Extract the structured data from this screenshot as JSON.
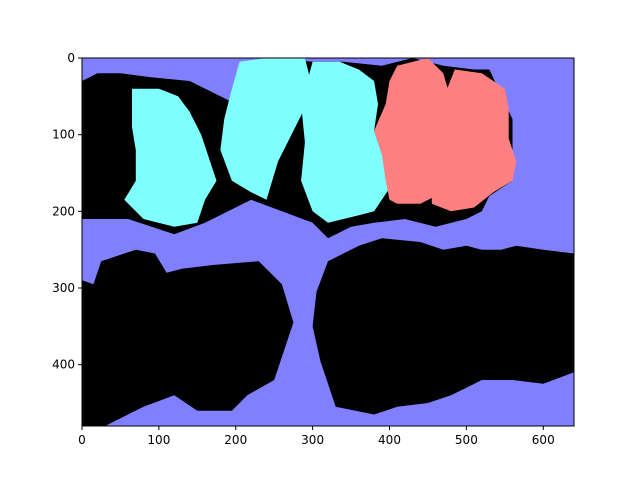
{
  "chart_data": {
    "type": "heatmap",
    "subtype": "segmentation-mask-image",
    "title": "",
    "xlabel": "",
    "ylabel": "",
    "xlim": [
      0,
      640
    ],
    "ylim": [
      480,
      0
    ],
    "y_inverted": true,
    "xticks": [
      0,
      100,
      200,
      300,
      400,
      500,
      600
    ],
    "yticks": [
      0,
      100,
      200,
      300,
      400
    ],
    "grid": false,
    "legend": "none",
    "classes": [
      {
        "id": "background",
        "color": "#8080ff"
      },
      {
        "id": "shadow",
        "color": "#000000"
      },
      {
        "id": "cyan-region",
        "color": "#80ffff"
      },
      {
        "id": "red-region",
        "color": "#ff8080"
      }
    ],
    "regions": [
      {
        "class": "shadow",
        "points": [
          [
            0,
            30
          ],
          [
            20,
            20
          ],
          [
            50,
            20
          ],
          [
            90,
            25
          ],
          [
            140,
            30
          ],
          [
            180,
            50
          ],
          [
            200,
            60
          ],
          [
            210,
            10
          ],
          [
            250,
            0
          ],
          [
            300,
            5
          ],
          [
            340,
            5
          ],
          [
            390,
            10
          ],
          [
            430,
            0
          ],
          [
            470,
            10
          ],
          [
            510,
            15
          ],
          [
            530,
            15
          ],
          [
            560,
            80
          ],
          [
            560,
            160
          ],
          [
            530,
            180
          ],
          [
            520,
            200
          ],
          [
            500,
            210
          ],
          [
            460,
            220
          ],
          [
            420,
            210
          ],
          [
            380,
            215
          ],
          [
            350,
            220
          ],
          [
            320,
            235
          ],
          [
            300,
            215
          ],
          [
            260,
            200
          ],
          [
            220,
            185
          ],
          [
            160,
            215
          ],
          [
            120,
            230
          ],
          [
            60,
            210
          ],
          [
            0,
            210
          ]
        ]
      },
      {
        "class": "shadow",
        "points": [
          [
            0,
            290
          ],
          [
            15,
            295
          ],
          [
            25,
            265
          ],
          [
            70,
            250
          ],
          [
            95,
            255
          ],
          [
            110,
            280
          ],
          [
            130,
            275
          ],
          [
            170,
            270
          ],
          [
            230,
            265
          ],
          [
            260,
            295
          ],
          [
            275,
            345
          ],
          [
            260,
            390
          ],
          [
            250,
            420
          ],
          [
            215,
            440
          ],
          [
            195,
            460
          ],
          [
            150,
            460
          ],
          [
            120,
            440
          ],
          [
            80,
            455
          ],
          [
            30,
            480
          ],
          [
            0,
            480
          ]
        ]
      },
      {
        "class": "shadow",
        "points": [
          [
            305,
            305
          ],
          [
            320,
            265
          ],
          [
            360,
            245
          ],
          [
            390,
            235
          ],
          [
            440,
            240
          ],
          [
            470,
            250
          ],
          [
            500,
            245
          ],
          [
            520,
            250
          ],
          [
            545,
            250
          ],
          [
            565,
            245
          ],
          [
            600,
            250
          ],
          [
            640,
            255
          ],
          [
            640,
            410
          ],
          [
            600,
            425
          ],
          [
            560,
            420
          ],
          [
            520,
            420
          ],
          [
            500,
            430
          ],
          [
            480,
            440
          ],
          [
            450,
            450
          ],
          [
            410,
            455
          ],
          [
            380,
            465
          ],
          [
            330,
            455
          ],
          [
            310,
            395
          ],
          [
            300,
            350
          ]
        ]
      },
      {
        "class": "cyan-region",
        "points": [
          [
            65,
            40
          ],
          [
            100,
            40
          ],
          [
            125,
            50
          ],
          [
            140,
            70
          ],
          [
            155,
            100
          ],
          [
            175,
            160
          ],
          [
            160,
            185
          ],
          [
            150,
            215
          ],
          [
            120,
            220
          ],
          [
            80,
            210
          ],
          [
            55,
            185
          ],
          [
            70,
            160
          ],
          [
            70,
            120
          ],
          [
            65,
            90
          ]
        ]
      },
      {
        "class": "cyan-region",
        "points": [
          [
            205,
            5
          ],
          [
            240,
            0
          ],
          [
            290,
            0
          ],
          [
            300,
            40
          ],
          [
            285,
            75
          ],
          [
            255,
            135
          ],
          [
            240,
            185
          ],
          [
            220,
            175
          ],
          [
            195,
            160
          ],
          [
            180,
            120
          ],
          [
            185,
            80
          ],
          [
            195,
            40
          ]
        ]
      },
      {
        "class": "cyan-region",
        "points": [
          [
            300,
            5
          ],
          [
            335,
            5
          ],
          [
            360,
            15
          ],
          [
            380,
            30
          ],
          [
            385,
            60
          ],
          [
            380,
            95
          ],
          [
            395,
            140
          ],
          [
            400,
            170
          ],
          [
            380,
            200
          ],
          [
            360,
            205
          ],
          [
            340,
            210
          ],
          [
            320,
            215
          ],
          [
            300,
            200
          ],
          [
            285,
            160
          ],
          [
            290,
            110
          ],
          [
            285,
            60
          ]
        ]
      },
      {
        "class": "red-region",
        "points": [
          [
            410,
            10
          ],
          [
            450,
            0
          ],
          [
            470,
            20
          ],
          [
            480,
            55
          ],
          [
            475,
            85
          ],
          [
            495,
            115
          ],
          [
            495,
            150
          ],
          [
            470,
            175
          ],
          [
            440,
            190
          ],
          [
            410,
            190
          ],
          [
            400,
            185
          ],
          [
            395,
            160
          ],
          [
            390,
            125
          ],
          [
            380,
            95
          ],
          [
            395,
            60
          ],
          [
            400,
            30
          ]
        ]
      },
      {
        "class": "red-region",
        "points": [
          [
            485,
            15
          ],
          [
            520,
            20
          ],
          [
            550,
            40
          ],
          [
            555,
            65
          ],
          [
            555,
            105
          ],
          [
            565,
            135
          ],
          [
            560,
            160
          ],
          [
            535,
            175
          ],
          [
            510,
            195
          ],
          [
            480,
            200
          ],
          [
            455,
            190
          ],
          [
            455,
            160
          ],
          [
            475,
            130
          ],
          [
            475,
            100
          ],
          [
            470,
            70
          ],
          [
            475,
            40
          ]
        ]
      }
    ]
  }
}
